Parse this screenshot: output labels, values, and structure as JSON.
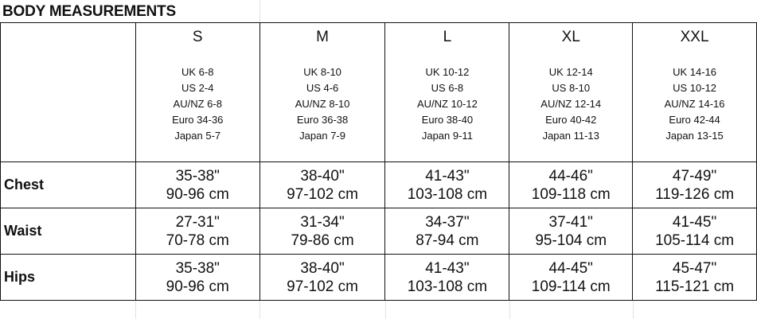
{
  "title": "BODY MEASUREMENTS",
  "sizes": [
    {
      "label": "S",
      "conversions": [
        "UK 6-8",
        "US 2-4",
        "AU/NZ 6-8",
        "Euro 34-36",
        "Japan 5-7"
      ]
    },
    {
      "label": "M",
      "conversions": [
        "UK 8-10",
        "US 4-6",
        "AU/NZ 8-10",
        "Euro 36-38",
        "Japan 7-9"
      ]
    },
    {
      "label": "L",
      "conversions": [
        "UK 10-12",
        "US 6-8",
        "AU/NZ 10-12",
        "Euro 38-40",
        "Japan 9-11"
      ]
    },
    {
      "label": "XL",
      "conversions": [
        "UK 12-14",
        "US 8-10",
        "AU/NZ 12-14",
        "Euro 40-42",
        "Japan 11-13"
      ]
    },
    {
      "label": "XXL",
      "conversions": [
        "UK 14-16",
        "US 10-12",
        "AU/NZ 14-16",
        "Euro 42-44",
        "Japan 13-15"
      ]
    }
  ],
  "rows": [
    {
      "label": "Chest",
      "values": [
        [
          "35-38\"",
          "90-96 cm"
        ],
        [
          "38-40\"",
          "97-102 cm"
        ],
        [
          "41-43\"",
          "103-108 cm"
        ],
        [
          "44-46\"",
          "109-118 cm"
        ],
        [
          "47-49\"",
          "119-126 cm"
        ]
      ]
    },
    {
      "label": "Waist",
      "values": [
        [
          "27-31\"",
          "70-78 cm"
        ],
        [
          "31-34\"",
          "79-86 cm"
        ],
        [
          "34-37\"",
          "87-94 cm"
        ],
        [
          "37-41\"",
          "95-104 cm"
        ],
        [
          "41-45\"",
          "105-114 cm"
        ]
      ]
    },
    {
      "label": "Hips",
      "values": [
        [
          "35-38\"",
          "90-96 cm"
        ],
        [
          "38-40\"",
          "97-102 cm"
        ],
        [
          "41-43\"",
          "103-108 cm"
        ],
        [
          "44-45\"",
          "109-114 cm"
        ],
        [
          "45-47\"",
          "115-121 cm"
        ]
      ]
    }
  ]
}
